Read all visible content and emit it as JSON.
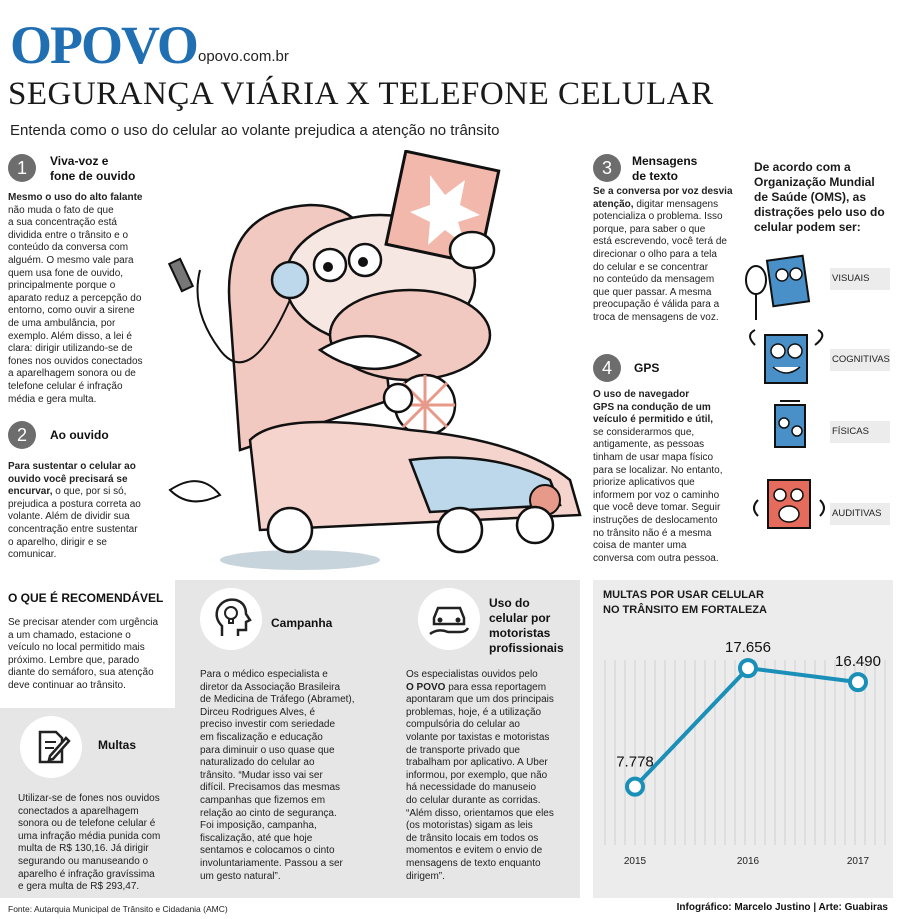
{
  "header": {
    "logo": "OPOVO",
    "site": "opovo.com.br",
    "headline": "SEGURANÇA VIÁRIA X TELEFONE CELULAR",
    "subtitle": "Entenda como o uso do celular ao volante prejudica a atenção no trânsito"
  },
  "sections": [
    {
      "number": "1",
      "title_line1": "Viva-voz e",
      "title_line2": "fone de ouvido",
      "body_bold": "Mesmo o uso do alto falante",
      "body_lines": [
        "não muda o fato de que",
        "a sua concentração está",
        "dividida entre o trânsito e o",
        "conteúdo da conversa com",
        "alguém. O mesmo vale para",
        "quem usa fone de ouvido,",
        "principalmente porque o",
        "aparato reduz a percepção do",
        "entorno, como ouvir a sirene",
        "de uma ambulância, por",
        "exemplo. Além disso, a lei é",
        "clara: dirigir utilizando-se de",
        "fones nos ouvidos conectados",
        "a aparelhagem sonora ou de",
        "telefone celular é infração",
        "média e gera multa."
      ]
    },
    {
      "number": "2",
      "title_line1": "Ao ouvido",
      "body_bold_lines": [
        "Para sustentar o celular ao",
        "ouvido você precisará se",
        "encurvar,"
      ],
      "body_rest_first": " o que, por si só,",
      "body_lines": [
        "prejudica a postura correta ao",
        "volante. Além de dividir sua",
        "concentração entre sustentar",
        "o aparelho, dirigir e se",
        "comunicar."
      ]
    },
    {
      "number": "3",
      "title_line1": "Mensagens",
      "title_line2": "de texto",
      "body_bold_lines": [
        "Se a conversa por voz desvia",
        "atenção,"
      ],
      "body_rest_first": " digitar mensagens",
      "body_lines": [
        "potencializa o problema. Isso",
        "porque, para saber o que",
        "está escrevendo, você terá de",
        "direcionar o olho para a tela",
        "do celular e se concentrar",
        "no conteúdo da mensagem",
        "que quer passar. A mesma",
        "preocupação é válida para a",
        "troca de mensagens de voz."
      ]
    },
    {
      "number": "4",
      "title_line1": "GPS",
      "body_bold_lines": [
        "O uso de navegador",
        "GPS na condução de um",
        "veículo é permitido e útil,"
      ],
      "body_lines": [
        "se considerarmos que,",
        "antigamente, as pessoas",
        "tinham de usar mapa físico",
        "para se localizar. No entanto,",
        "priorize aplicativos que",
        "informem por voz o caminho",
        "que você deve tomar. Seguir",
        "instruções de deslocamento",
        "no trânsito não é a mesma",
        "coisa de manter uma",
        "conversa com outra pessoa."
      ]
    }
  ],
  "oms": {
    "intro_lines": [
      "De acordo com a",
      "Organização Mundial",
      "de Saúde (OMS), as",
      "distrações pelo uso do",
      "celular podem ser:"
    ],
    "items": [
      "VISUAIS",
      "COGNITIVAS",
      "FÍSICAS",
      "AUDITIVAS"
    ]
  },
  "recomendavel": {
    "title": "O QUE É RECOMENDÁVEL",
    "lines": [
      "Se precisar atender com urgência",
      "a um chamado, estacione o",
      "veículo no local permitido mais",
      "próximo. Lembre que, parado",
      "diante do semáforo, sua atenção",
      "deve continuar ao trânsito."
    ]
  },
  "multas": {
    "title": "Multas",
    "lines": [
      "Utilizar-se de fones nos ouvidos",
      "conectados a aparelhagem",
      "sonora ou de telefone celular é",
      "uma infração média punida com",
      "multa de R$ 130,16. Já dirigir",
      "segurando ou manuseando o",
      "aparelho é infração gravíssima",
      "e gera multa de R$ 293,47."
    ]
  },
  "campanha": {
    "title": "Campanha",
    "lines": [
      "Para o médico especialista e",
      "diretor da Associação Brasileira",
      "de Medicina de Tráfego (Abramet),",
      "Dirceu Rodrigues Alves, é",
      "preciso investir com seriedade",
      "em fiscalização e educação",
      "para diminuir o uso quase que",
      "naturalizado do celular ao",
      "trânsito. “Mudar isso vai ser",
      "difícil. Precisamos das mesmas",
      "campanhas que fizemos em",
      "relação ao cinto de segurança.",
      "Foi imposição, campanha,",
      "fiscalização, até que hoje",
      "sentamos e colocamos o cinto",
      "involuntariamente. Passou a ser",
      "um gesto natural”."
    ]
  },
  "motoristas": {
    "title_lines": [
      "Uso do",
      "celular por",
      "motoristas",
      "profissionais"
    ],
    "line_first": "Os especialistas ouvidos pelo",
    "bold_word": "O POVO",
    "line_bold_rest": " para essa reportagem",
    "lines": [
      "apontaram que um dos principais",
      "problemas, hoje, é a utilização",
      "compulsória do celular ao",
      "volante por taxistas e motoristas",
      "de transporte privado que",
      "trabalham por aplicativo. A Uber",
      "informou, por exemplo, que não",
      "há necessidade do manuseio",
      "do celular durante as corridas.",
      "“Além disso, orientamos que eles",
      "(os motoristas) sigam as leis",
      "de trânsito locais em todos os",
      "momentos e evitem o envio de",
      "mensagens de texto enquanto",
      "dirigem”."
    ]
  },
  "chart_data": {
    "type": "line",
    "title_lines": [
      "MULTAS POR USAR CELULAR",
      "NO TRÂNSITO EM FORTALEZA"
    ],
    "categories": [
      "2015",
      "2016",
      "2017"
    ],
    "values": [
      7778,
      17656,
      16490
    ],
    "value_labels": [
      "7.778",
      "17.656",
      "16.490"
    ],
    "color": "#1a8fb8"
  },
  "footer": {
    "source": "Fonte: Autarquia Municipal de Trânsito e Cidadania (AMC)",
    "credits": "Infográfico: Marcelo Justino | Arte: Guabiras"
  },
  "icons": [
    "headset-icon",
    "lightbulb-head-icon",
    "car-hand-icon",
    "document-pen-icon"
  ],
  "colors": {
    "logo": "#1f6fb2",
    "badge": "#6d6d6d",
    "panel": "#e6e6e6",
    "chart_line": "#1a8fb8"
  }
}
